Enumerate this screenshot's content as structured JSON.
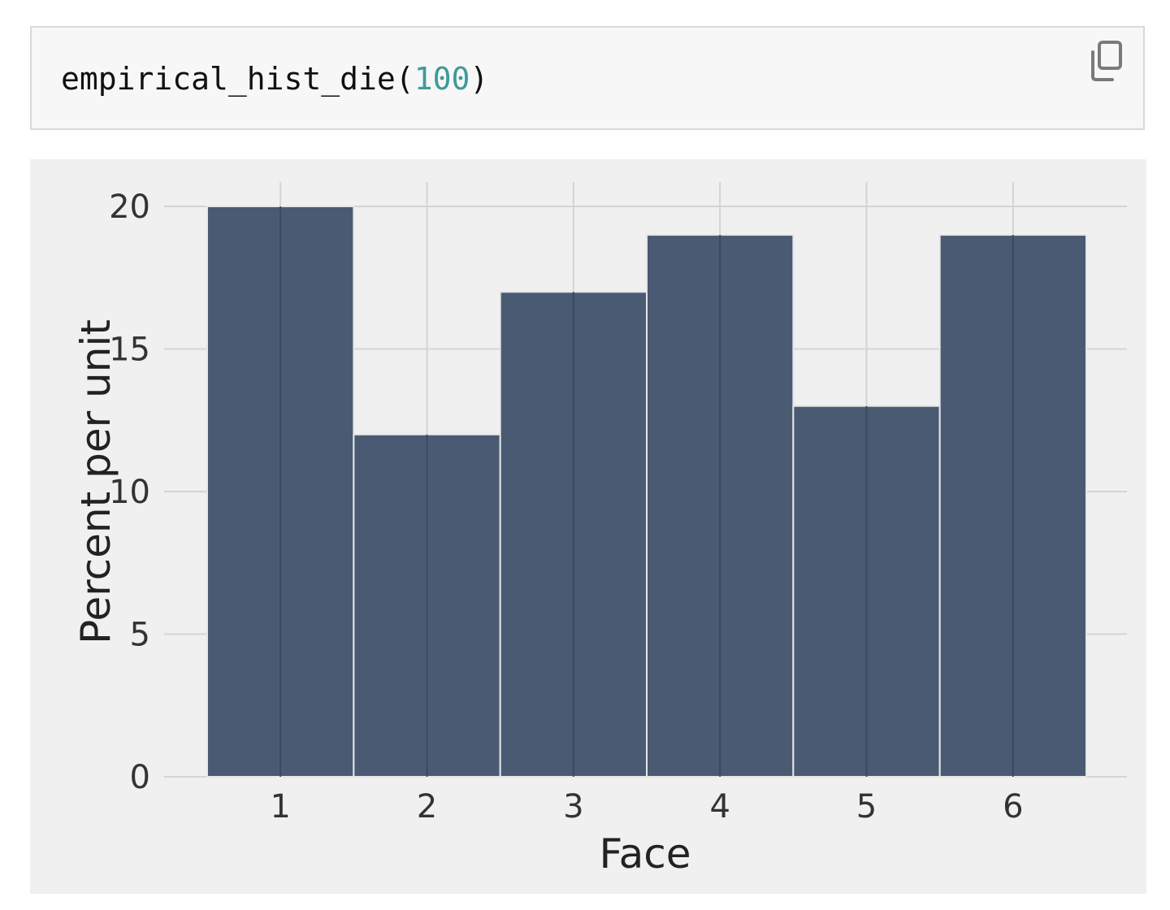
{
  "code": {
    "func_text": "empirical_hist_die(",
    "arg_text": "100",
    "close_text": ")"
  },
  "icons": {
    "copy": "copy-icon"
  },
  "colors": {
    "bar": "#4a5a73",
    "number": "#3e9a9a",
    "panel": "#f0f0f0"
  },
  "chart_data": {
    "type": "bar",
    "categories": [
      "1",
      "2",
      "3",
      "4",
      "5",
      "6"
    ],
    "values": [
      20,
      12,
      17,
      19,
      13,
      19
    ],
    "xlabel": "Face",
    "ylabel": "Percent per unit",
    "ylim": [
      0,
      20
    ],
    "yticks": [
      0,
      5,
      10,
      15,
      20
    ],
    "grid": true
  }
}
